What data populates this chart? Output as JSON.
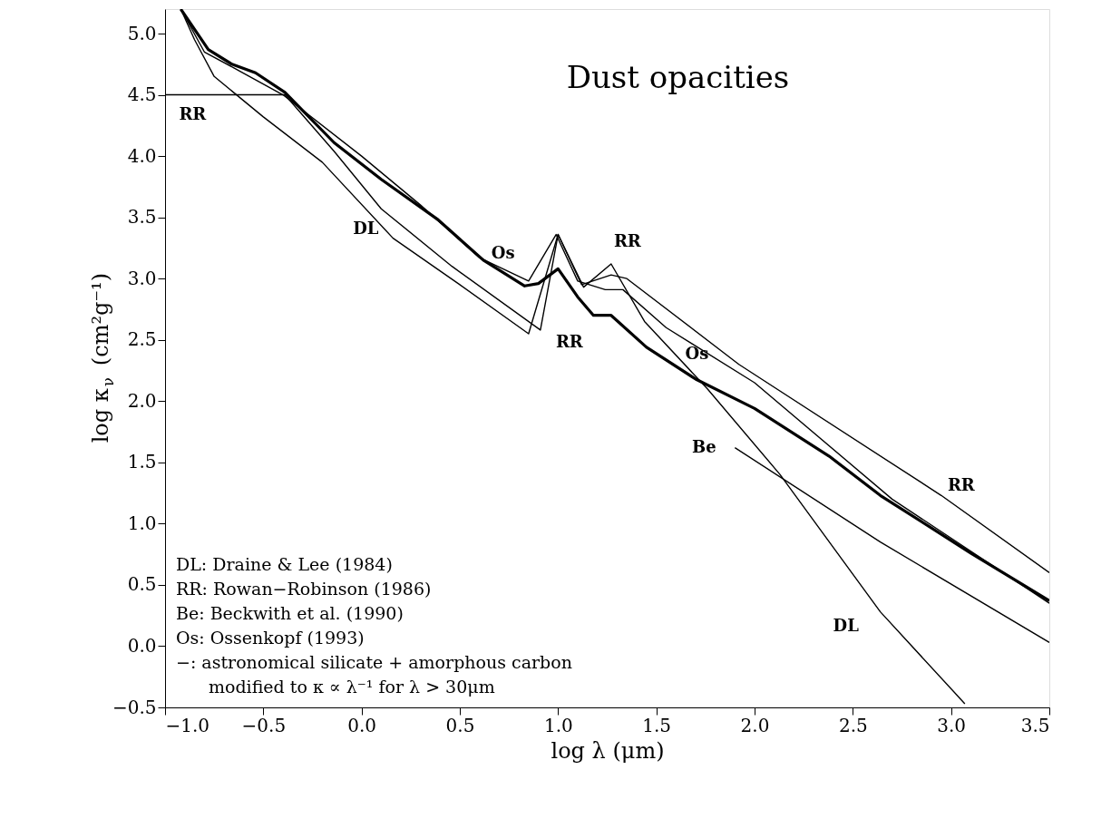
{
  "chart_data": {
    "type": "line",
    "title": "Dust opacities",
    "xlabel": "log λ (μm)",
    "ylabel": "log κ$_{ν}$ (cm²g⁻¹)",
    "xlim": [
      -1.0,
      3.5
    ],
    "ylim": [
      -0.5,
      5.2
    ],
    "xticks": [
      {
        "value": -1.0,
        "label": "−1.0"
      },
      {
        "value": -0.5,
        "label": "−0.5"
      },
      {
        "value": 0.0,
        "label": "0.0"
      },
      {
        "value": 0.5,
        "label": "0.5"
      },
      {
        "value": 1.0,
        "label": "1.0"
      },
      {
        "value": 1.5,
        "label": "1.5"
      },
      {
        "value": 2.0,
        "label": "2.0"
      },
      {
        "value": 2.5,
        "label": "2.5"
      },
      {
        "value": 3.0,
        "label": "3.0"
      },
      {
        "value": 3.5,
        "label": "3.5"
      }
    ],
    "yticks": [
      {
        "value": -0.5,
        "label": "−0.5"
      },
      {
        "value": 0.0,
        "label": "0.0"
      },
      {
        "value": 0.5,
        "label": "0.5"
      },
      {
        "value": 1.0,
        "label": "1.0"
      },
      {
        "value": 1.5,
        "label": "1.5"
      },
      {
        "value": 2.0,
        "label": "2.0"
      },
      {
        "value": 2.5,
        "label": "2.5"
      },
      {
        "value": 3.0,
        "label": "3.0"
      },
      {
        "value": 3.5,
        "label": "3.5"
      },
      {
        "value": 4.0,
        "label": "4.0"
      },
      {
        "value": 4.5,
        "label": "4.5"
      },
      {
        "value": 5.0,
        "label": "5.0"
      }
    ],
    "grid": false,
    "marker": "none",
    "line_style": "solid",
    "series": [
      {
        "color": "#000000",
        "x": [
          -0.92,
          -0.78,
          -0.66,
          -0.54,
          -0.39,
          -0.14,
          0.1,
          0.39,
          0.62,
          0.83,
          0.9,
          1.0,
          1.1,
          1.18,
          1.27,
          1.45,
          1.7,
          2.0,
          2.38,
          2.64,
          3.1,
          3.5
        ],
        "values": [
          5.2,
          4.87,
          4.75,
          4.68,
          4.52,
          4.11,
          3.81,
          3.48,
          3.15,
          2.94,
          2.96,
          3.08,
          2.85,
          2.7,
          2.7,
          2.44,
          2.18,
          1.94,
          1.55,
          1.23,
          0.76,
          0.37
        ]
      },
      {
        "color": "#000000",
        "x": [
          -0.92,
          -0.85,
          -0.75,
          -0.5,
          -0.2,
          0.16,
          0.5,
          0.85,
          1.0,
          1.13,
          1.27,
          1.44,
          1.76,
          2.13,
          2.64,
          3.07
        ],
        "values": [
          5.2,
          4.95,
          4.65,
          4.32,
          3.95,
          3.33,
          2.95,
          2.55,
          3.36,
          2.93,
          3.12,
          2.65,
          2.1,
          1.4,
          0.28,
          -0.47
        ]
      },
      {
        "color": "#000000",
        "x": [
          -1.0,
          -0.39,
          -0.14,
          0.1,
          0.46,
          0.91,
          1.0,
          1.12,
          1.27,
          1.35,
          1.92,
          2.95,
          3.5
        ],
        "values": [
          4.5,
          4.5,
          4.04,
          3.57,
          3.1,
          2.58,
          3.36,
          2.95,
          3.03,
          3.0,
          2.3,
          1.23,
          0.6
        ]
      },
      {
        "color": "#000000",
        "x": [
          -0.92,
          -0.8,
          -0.65,
          -0.4,
          0.0,
          0.3,
          0.6,
          0.85,
          0.99,
          1.1,
          1.24,
          1.33,
          1.55,
          2.0,
          2.7,
          3.5
        ],
        "values": [
          5.2,
          4.85,
          4.72,
          4.5,
          4.0,
          3.6,
          3.17,
          2.98,
          3.36,
          2.98,
          2.91,
          2.91,
          2.6,
          2.15,
          1.2,
          0.35
        ]
      },
      {
        "color": "#000000",
        "x": [
          1.9,
          2.64,
          3.5
        ],
        "values": [
          1.62,
          0.85,
          0.03
        ]
      }
    ],
    "annotations": [
      {
        "text": "RR",
        "x": -0.86,
        "y": 4.5
      },
      {
        "text": "DL",
        "x": 0.16,
        "y": 3.33
      },
      {
        "text": "Os",
        "x": 0.72,
        "y": 3.07
      },
      {
        "text": "RR",
        "x": 1.27,
        "y": 3.03
      },
      {
        "text": "RR",
        "x": 0.91,
        "y": 2.58
      },
      {
        "text": "Os",
        "x": 1.55,
        "y": 2.6
      },
      {
        "text": "Be",
        "x": 1.9,
        "y": 1.62
      },
      {
        "text": "RR",
        "x": 2.95,
        "y": 1.23
      },
      {
        "text": "DL",
        "x": 2.64,
        "y": 0.28
      },
      "DL: Draine & Lee (1984)",
      "RR: Rowan−Robinson (1986)",
      "Be: Beckwith et al. (1990)",
      "Os: Ossenkopf (1993)",
      "−: astronomical silicate + amorphous carbon",
      "modified to κ ∝ λ⁻¹ for λ > 30μm"
    ]
  }
}
